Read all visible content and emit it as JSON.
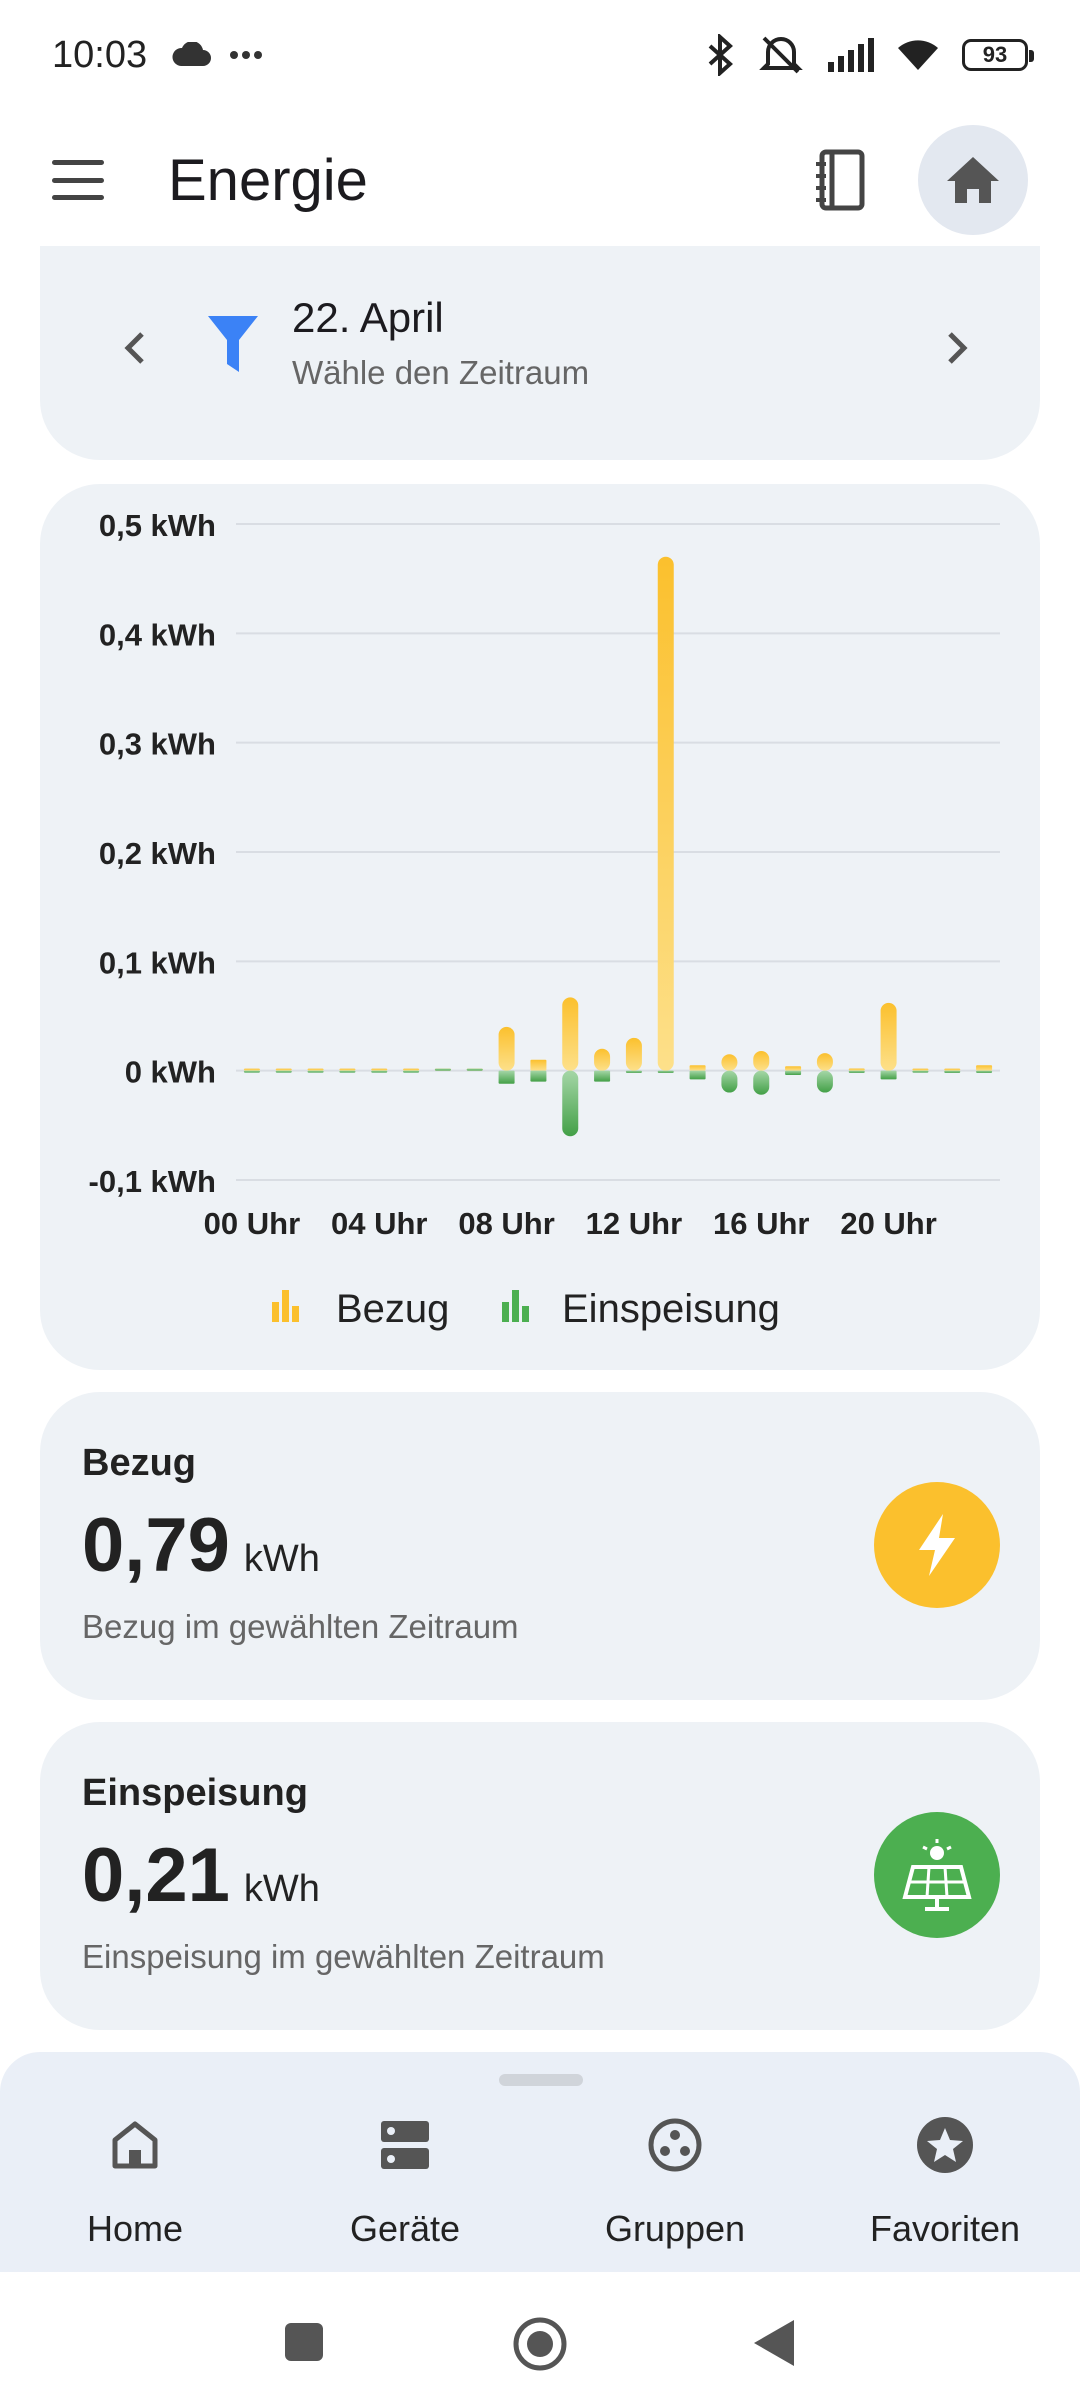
{
  "status": {
    "time": "10:03",
    "battery": "93"
  },
  "appbar": {
    "title": "Energie"
  },
  "date_selector": {
    "date": "22. April",
    "hint": "Wähle den Zeitraum"
  },
  "chart_data": {
    "type": "bar",
    "x": [
      "00 Uhr",
      "01 Uhr",
      "02 Uhr",
      "03 Uhr",
      "04 Uhr",
      "05 Uhr",
      "06 Uhr",
      "07 Uhr",
      "08 Uhr",
      "09 Uhr",
      "10 Uhr",
      "11 Uhr",
      "12 Uhr",
      "13 Uhr",
      "14 Uhr",
      "15 Uhr",
      "16 Uhr",
      "17 Uhr",
      "18 Uhr",
      "19 Uhr",
      "20 Uhr",
      "21 Uhr",
      "22 Uhr",
      "23 Uhr"
    ],
    "xticks": [
      "00 Uhr",
      "04 Uhr",
      "08 Uhr",
      "12 Uhr",
      "16 Uhr",
      "20 Uhr"
    ],
    "yticks": [
      "0,5 kWh",
      "0,4 kWh",
      "0,3 kWh",
      "0,2 kWh",
      "0,1 kWh",
      "0 kWh",
      "-0,1 kWh"
    ],
    "ylim": [
      -0.1,
      0.5
    ],
    "series": [
      {
        "name": "Bezug",
        "color": "#fbc02d",
        "values": [
          0.001,
          0.001,
          0.001,
          0.001,
          0.001,
          0.001,
          0.001,
          0.001,
          0.04,
          0.01,
          0.067,
          0.02,
          0.03,
          0.47,
          0.005,
          0.015,
          0.018,
          0.004,
          0.016,
          0.002,
          0.062,
          0.001,
          0.001,
          0.005
        ]
      },
      {
        "name": "Einspeisung",
        "color": "#4caf50",
        "values": [
          -0.001,
          -0.001,
          -0.001,
          -0.001,
          -0.001,
          -0.001,
          0,
          0,
          -0.012,
          -0.01,
          -0.06,
          -0.01,
          -0.002,
          -0.002,
          -0.008,
          -0.02,
          -0.022,
          -0.004,
          -0.02,
          -0.002,
          -0.008,
          -0.001,
          -0.002,
          -0.002
        ]
      }
    ],
    "grid": true,
    "legend": "bottom-center"
  },
  "stats": {
    "bezug": {
      "label": "Bezug",
      "value": "0,79",
      "unit": "kWh",
      "desc": "Bezug im gewählten Zeitraum",
      "color": "#fbc02d"
    },
    "einspeisung": {
      "label": "Einspeisung",
      "value": "0,21",
      "unit": "kWh",
      "desc": "Einspeisung im gewählten Zeitraum",
      "color": "#4caf50"
    }
  },
  "nav": {
    "home": "Home",
    "geraete": "Geräte",
    "gruppen": "Gruppen",
    "favoriten": "Favoriten"
  }
}
